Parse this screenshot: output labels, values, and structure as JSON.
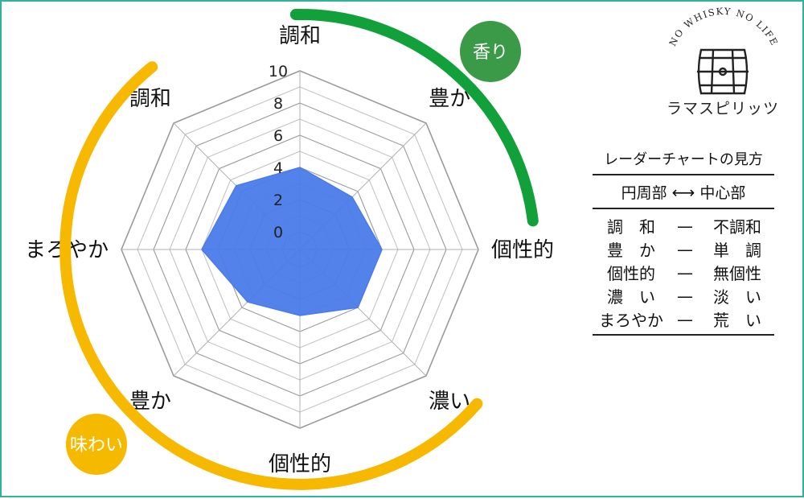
{
  "chart_data": {
    "type": "radar",
    "axes": [
      "調和",
      "豊か",
      "個性的",
      "濃い",
      "個性的",
      "豊か",
      "まろやか",
      "調和"
    ],
    "values": [
      4.0,
      3.5,
      4.0,
      4.0,
      3.0,
      3.5,
      5.0,
      4.5
    ],
    "rlim": [
      0,
      10
    ],
    "ticks": [
      0,
      2,
      4,
      6,
      8,
      10
    ],
    "tick_labels": [
      "0",
      "2",
      "4",
      "6",
      "8",
      "10"
    ],
    "grid": true,
    "fill_color": "#4a7bea",
    "groups": [
      {
        "label": "香り",
        "color": "#12a03a",
        "badge_color": "#3a9a47"
      },
      {
        "label": "味わい",
        "color": "#f7b800",
        "badge_color": "#f5b900"
      }
    ]
  },
  "logo": {
    "arc_text": "NO WHISKY NO LIFE",
    "caption": "ラマスピリッツ",
    "icon": "barrel-icon"
  },
  "legend": {
    "title": "レーダーチャートの見方",
    "header": {
      "left": "円周部",
      "arrow": "⟷",
      "right": "中心部"
    },
    "rows": [
      {
        "left": "調　和",
        "dash": "—",
        "right": "不調和"
      },
      {
        "left": "豊　か",
        "dash": "—",
        "right": "単　調"
      },
      {
        "left": "個性的",
        "dash": "—",
        "right": "無個性"
      },
      {
        "left": "濃　い",
        "dash": "—",
        "right": "淡　い"
      },
      {
        "left": "まろやか",
        "dash": "—",
        "right": "荒　い"
      }
    ]
  }
}
